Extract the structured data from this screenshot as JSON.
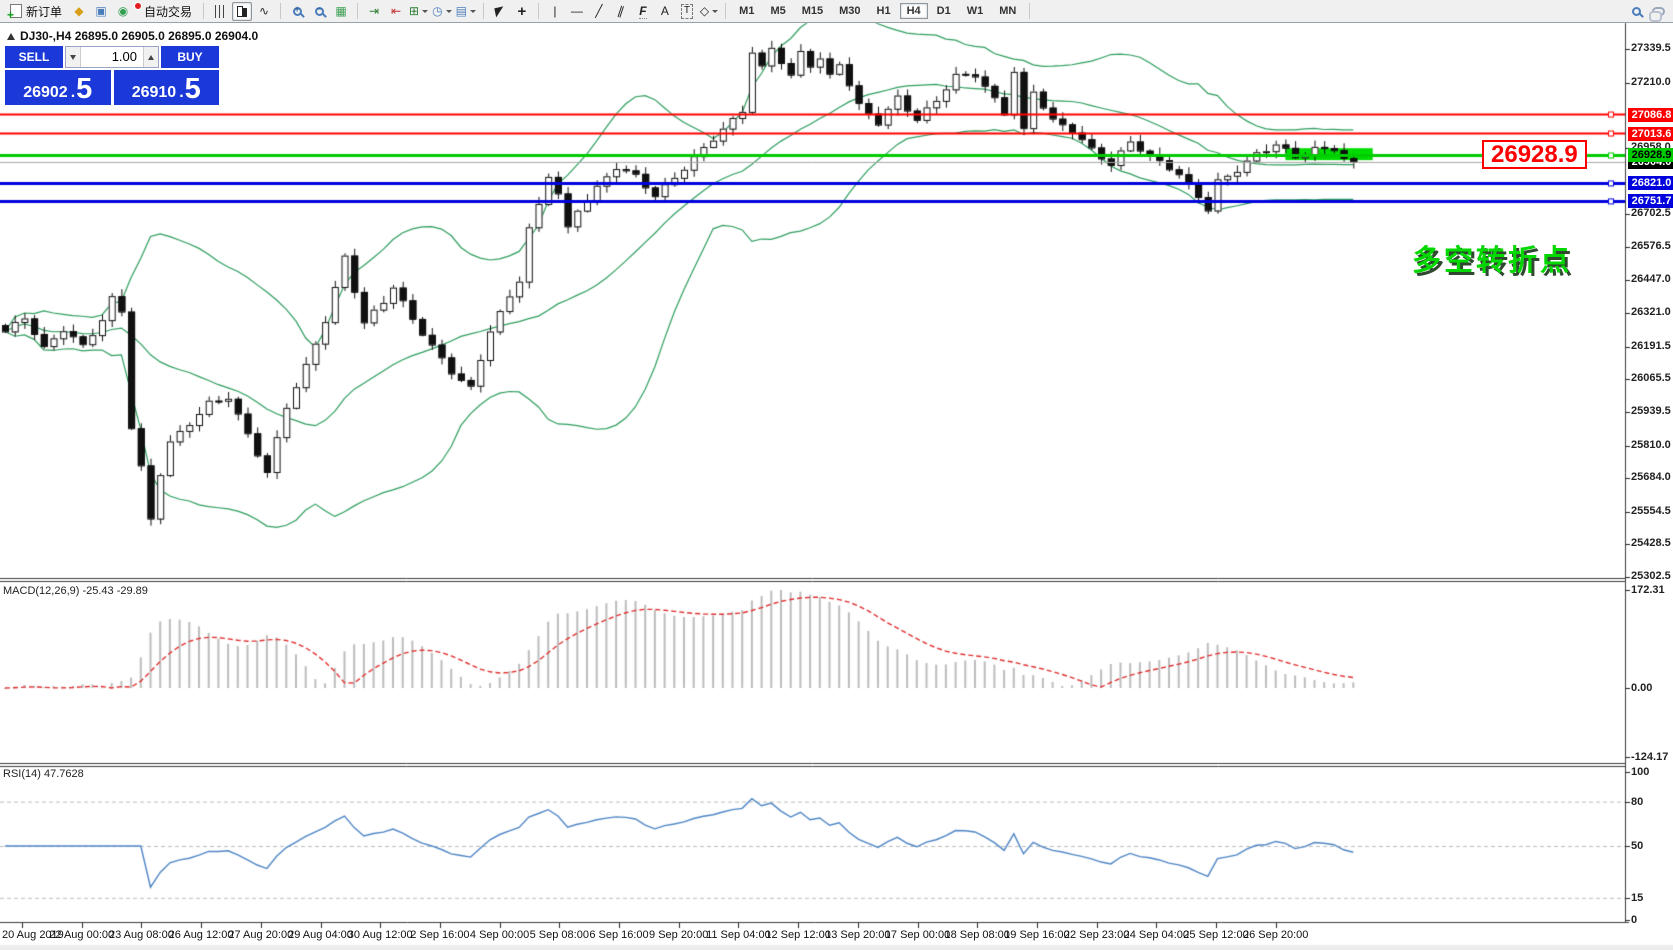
{
  "toolbar": {
    "new_order_label": "新订单",
    "auto_trading_label": "自动交易",
    "timeframes": [
      "M1",
      "M5",
      "M15",
      "M30",
      "H1",
      "H4",
      "D1",
      "W1",
      "MN"
    ],
    "active_timeframe": "H4",
    "items": [
      {
        "k": "btn",
        "n": "new-order",
        "icon": "doc-plus",
        "label_key": "new_order_label"
      },
      {
        "k": "icon",
        "n": "market-depth",
        "g": "◆",
        "c": "#d8a018"
      },
      {
        "k": "icon",
        "n": "profile",
        "g": "▣",
        "c": "#4a7ebb"
      },
      {
        "k": "icon",
        "n": "signals",
        "g": "◉",
        "c": "#2e9e4f"
      },
      {
        "k": "btn",
        "n": "auto-trading",
        "icon": "cloud-reddot",
        "label_key": "auto_trading_label"
      },
      {
        "k": "sep"
      },
      {
        "k": "icon",
        "n": "ohlc-bars",
        "icon": "bars"
      },
      {
        "k": "icon",
        "n": "candlesticks",
        "icon": "candles",
        "active": true
      },
      {
        "k": "icon",
        "n": "line-chart",
        "g": "∿",
        "c": "#2a2a2a"
      },
      {
        "k": "sep"
      },
      {
        "k": "icon",
        "n": "zoom-in",
        "icon": "zoom-in"
      },
      {
        "k": "icon",
        "n": "zoom-out",
        "icon": "zoom-out"
      },
      {
        "k": "icon",
        "n": "tile-windows",
        "g": "▦",
        "c": "#3a9e4f"
      },
      {
        "k": "sep"
      },
      {
        "k": "icon",
        "n": "auto-scroll",
        "g": "⇥",
        "c": "#2e7d32"
      },
      {
        "k": "icon",
        "n": "chart-shift",
        "g": "⇤",
        "c": "#c03030"
      },
      {
        "k": "icon",
        "n": "indicators-menu",
        "g": "⊞",
        "c": "#2e7d32",
        "dd": true
      },
      {
        "k": "icon",
        "n": "periods-menu",
        "g": "◷",
        "c": "#4a7ebb",
        "dd": true
      },
      {
        "k": "icon",
        "n": "templates-menu",
        "g": "▤",
        "c": "#4a7ebb",
        "dd": true
      },
      {
        "k": "sep"
      },
      {
        "k": "icon",
        "n": "cursor",
        "g": "◤",
        "cls": "cursor"
      },
      {
        "k": "icon",
        "n": "crosshair",
        "g": "+",
        "c": "#222",
        "cls": "big"
      },
      {
        "k": "sep"
      },
      {
        "k": "icon",
        "n": "vertical-line-tool",
        "g": "|",
        "c": "#222"
      },
      {
        "k": "icon",
        "n": "horizontal-line-tool",
        "g": "—",
        "c": "#222"
      },
      {
        "k": "icon",
        "n": "trendline-tool",
        "g": "╱",
        "c": "#222"
      },
      {
        "k": "icon",
        "n": "equidistant-channel-tool",
        "g": "∥",
        "c": "#222",
        "cls": "slant"
      },
      {
        "k": "icon",
        "n": "fibonacci-tool",
        "g": "F",
        "c": "#222",
        "cls": "fib"
      },
      {
        "k": "icon",
        "n": "text-tool",
        "g": "A",
        "c": "#222"
      },
      {
        "k": "icon",
        "n": "text-label-tool",
        "g": "T",
        "c": "#222",
        "cls": "boxed"
      },
      {
        "k": "icon",
        "n": "shapes-tool",
        "g": "◇",
        "c": "#222",
        "dd": true
      },
      {
        "k": "sep"
      },
      {
        "k": "tf"
      },
      {
        "k": "spring"
      },
      {
        "k": "icon",
        "n": "search",
        "icon": "magnifier"
      },
      {
        "k": "icon",
        "n": "chat",
        "icon": "chat"
      }
    ]
  },
  "quote_panel": {
    "title": "DJ30-,H4 26895.0 26905.0 26895.0 26904.0",
    "sell_label": "SELL",
    "buy_label": "BUY",
    "volume": "1.00",
    "sell_price_main": "26902",
    "buy_price_main": "26910",
    "price_dot": ".",
    "sell_price_pip": "5",
    "buy_price_pip": "5",
    "panel_color": "#1b38d8"
  },
  "chart": {
    "big_price_label": "26928.9",
    "annotation": "多空转折点",
    "macd_label": "MACD(12,26,9) -25.43 -29.89",
    "rsi_label": "RSI(14) 47.7628"
  },
  "chart_data": {
    "type": "candlestick",
    "symbol": "DJ30-",
    "period": "H4",
    "current_bar": {
      "open": 26895.0,
      "high": 26905.0,
      "low": 26895.0,
      "close": 26904.0
    },
    "bid": 26902.5,
    "ask": 26910.5,
    "price_range": [
      25299,
      27440
    ],
    "price_axis_ticks": [
      "27339.5",
      "27210.0",
      "26958.0",
      "26702.5",
      "26576.5",
      "26447.0",
      "26321.0",
      "26191.5",
      "26065.5",
      "25939.5",
      "25810.0",
      "25684.0",
      "25554.5",
      "25428.5",
      "25302.5"
    ],
    "last_price": {
      "label": "26904.0",
      "value": 26904.0,
      "color": "#000000"
    },
    "horizontal_lines": [
      {
        "label": "27086.8",
        "value": 27086.8,
        "color": "#ff0000",
        "width": 2
      },
      {
        "label": "27013.6",
        "value": 27013.6,
        "color": "#ff0000",
        "width": 2
      },
      {
        "label": "26821.0",
        "value": 26821.0,
        "color": "#0000dd",
        "width": 3
      },
      {
        "label": "26751.7",
        "value": 26751.7,
        "color": "#0000dd",
        "width": 3
      },
      {
        "label": "26928.9",
        "value": 26928.9,
        "color": "#00cc00",
        "width": 3,
        "text_color": "#000000"
      }
    ],
    "highlight_rect": {
      "candle_start": 132,
      "candle_end": 141,
      "price_top": 26957,
      "price_bottom": 26911,
      "color": "#00dc00"
    },
    "x_axis_labels": [
      "20 Aug 2019",
      "22 Aug 00:00",
      "23 Aug 08:00",
      "26 Aug 12:00",
      "27 Aug 20:00",
      "29 Aug 04:00",
      "30 Aug 12:00",
      "2 Sep 16:00",
      "4 Sep 00:00",
      "5 Sep 08:00",
      "6 Sep 16:00",
      "9 Sep 20:00",
      "11 Sep 04:00",
      "12 Sep 12:00",
      "13 Sep 20:00",
      "17 Sep 00:00",
      "18 Sep 08:00",
      "19 Sep 16:00",
      "22 Sep 23:00",
      "24 Sep 04:00",
      "25 Sep 12:00",
      "26 Sep 20:00"
    ],
    "candle_count": 140,
    "close_anchors": [
      [
        0,
        26250
      ],
      [
        2,
        26300
      ],
      [
        4,
        26180
      ],
      [
        6,
        26260
      ],
      [
        8,
        26200
      ],
      [
        10,
        26300
      ],
      [
        11,
        26380
      ],
      [
        12,
        26330
      ],
      [
        13,
        25880
      ],
      [
        14,
        25720
      ],
      [
        15,
        25520
      ],
      [
        16,
        25700
      ],
      [
        17,
        25820
      ],
      [
        19,
        25900
      ],
      [
        21,
        25980
      ],
      [
        23,
        26000
      ],
      [
        25,
        25850
      ],
      [
        27,
        25700
      ],
      [
        29,
        25960
      ],
      [
        31,
        26120
      ],
      [
        33,
        26300
      ],
      [
        35,
        26540
      ],
      [
        37,
        26280
      ],
      [
        39,
        26360
      ],
      [
        40,
        26420
      ],
      [
        42,
        26300
      ],
      [
        44,
        26200
      ],
      [
        46,
        26100
      ],
      [
        48,
        26030
      ],
      [
        50,
        26250
      ],
      [
        52,
        26380
      ],
      [
        53,
        26450
      ],
      [
        54,
        26650
      ],
      [
        55,
        26740
      ],
      [
        56,
        26860
      ],
      [
        57,
        26790
      ],
      [
        58,
        26650
      ],
      [
        59,
        26720
      ],
      [
        61,
        26800
      ],
      [
        63,
        26880
      ],
      [
        65,
        26850
      ],
      [
        67,
        26780
      ],
      [
        69,
        26850
      ],
      [
        71,
        26920
      ],
      [
        73,
        26990
      ],
      [
        75,
        27060
      ],
      [
        76,
        27100
      ],
      [
        77,
        27330
      ],
      [
        78,
        27270
      ],
      [
        79,
        27350
      ],
      [
        80,
        27300
      ],
      [
        81,
        27240
      ],
      [
        82,
        27330
      ],
      [
        83,
        27280
      ],
      [
        84,
        27300
      ],
      [
        85,
        27230
      ],
      [
        86,
        27280
      ],
      [
        88,
        27120
      ],
      [
        90,
        27060
      ],
      [
        92,
        27160
      ],
      [
        94,
        27070
      ],
      [
        96,
        27140
      ],
      [
        98,
        27230
      ],
      [
        100,
        27240
      ],
      [
        102,
        27150
      ],
      [
        103,
        27100
      ],
      [
        104,
        27260
      ],
      [
        105,
        27030
      ],
      [
        106,
        27180
      ],
      [
        107,
        27120
      ],
      [
        108,
        27060
      ],
      [
        110,
        27020
      ],
      [
        112,
        26950
      ],
      [
        114,
        26900
      ],
      [
        116,
        26990
      ],
      [
        118,
        26930
      ],
      [
        120,
        26880
      ],
      [
        121,
        26850
      ],
      [
        123,
        26770
      ],
      [
        124,
        26720
      ],
      [
        125,
        26830
      ],
      [
        127,
        26880
      ],
      [
        129,
        26940
      ],
      [
        131,
        26970
      ],
      [
        133,
        26920
      ],
      [
        135,
        26950
      ],
      [
        137,
        26960
      ],
      [
        138,
        26920
      ],
      [
        139,
        26904
      ]
    ],
    "bollinger": {
      "period": 20,
      "deviation": 2,
      "color": "#2f9e5f"
    },
    "macd": {
      "params": [
        12,
        26,
        9
      ],
      "main_value": -25.43,
      "signal_value": -29.89,
      "axis_ticks": [
        "172.31",
        "0.00",
        "-124.17"
      ],
      "histogram_color": "#bdbdbd",
      "signal_color": "#e03030"
    },
    "rsi": {
      "period": 14,
      "value": 47.7628,
      "axis_ticks": [
        "100",
        "80",
        "50",
        "15",
        "0"
      ],
      "grid_levels": [
        80,
        50,
        15
      ],
      "line_color": "#4f86c6"
    }
  }
}
